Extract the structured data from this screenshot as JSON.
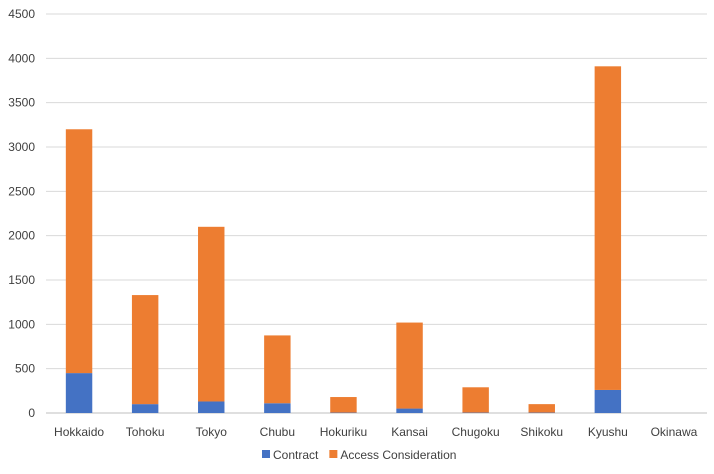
{
  "chart_data": {
    "type": "bar",
    "stacked": true,
    "categories": [
      "Hokkaido",
      "Tohoku",
      "Tokyo",
      "Chubu",
      "Hokuriku",
      "Kansai",
      "Chugoku",
      "Shikoku",
      "Kyushu",
      "Okinawa"
    ],
    "series": [
      {
        "name": "Contract",
        "color": "#4472C4",
        "values": [
          450,
          100,
          130,
          110,
          5,
          50,
          5,
          5,
          260,
          0
        ]
      },
      {
        "name": "Access Consideration",
        "color": "#ED7D31",
        "values": [
          2750,
          1230,
          1970,
          765,
          175,
          970,
          285,
          95,
          3650,
          0
        ]
      }
    ],
    "title": "",
    "xlabel": "",
    "ylabel": "",
    "ylim": [
      0,
      4500
    ],
    "yticks": [
      0,
      500,
      1000,
      1500,
      2000,
      2500,
      3000,
      3500,
      4000,
      4500
    ],
    "grid": true,
    "legend_position": "bottom"
  }
}
